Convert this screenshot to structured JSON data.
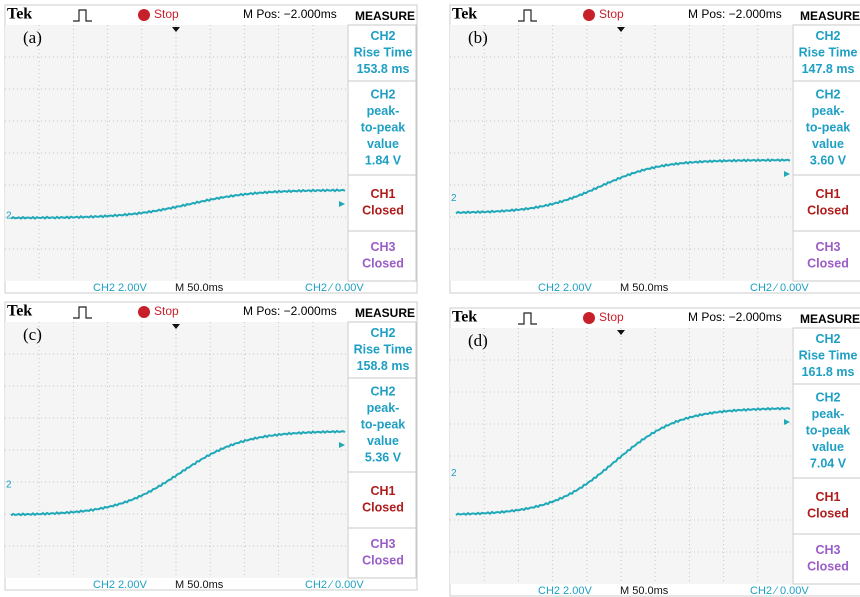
{
  "panels": [
    {
      "label": "(a)",
      "brand": "Tek",
      "status": "Stop",
      "mpos": "M Pos: −2.000ms",
      "measure": "MEASURE",
      "boxes": [
        {
          "color": "#1e9fc4",
          "lines": [
            "CH2",
            "Rise Time",
            "153.8 ms"
          ]
        },
        {
          "color": "#1e9fc4",
          "lines": [
            "CH2",
            "peak-",
            "to-peak",
            "value",
            "1.84 V"
          ]
        },
        {
          "color": "#b01c1c",
          "lines": [
            "CH1",
            "Closed"
          ]
        },
        {
          "color": "#9a5cc8",
          "lines": [
            "CH3",
            "Closed"
          ]
        }
      ],
      "marker": "2",
      "footer": [
        "CH2  2.00V",
        "M 50.0ms",
        "CH2 ∕ 0.00V"
      ]
    },
    {
      "label": "(b)",
      "brand": "Tek",
      "status": "Stop",
      "mpos": "M Pos: −2.000ms",
      "measure": "MEASURE",
      "boxes": [
        {
          "color": "#1e9fc4",
          "lines": [
            "CH2",
            "Rise Time",
            "147.8 ms"
          ]
        },
        {
          "color": "#1e9fc4",
          "lines": [
            "CH2",
            "peak-",
            "to-peak",
            "value",
            "3.60 V"
          ]
        },
        {
          "color": "#b01c1c",
          "lines": [
            "CH1",
            "Closed"
          ]
        },
        {
          "color": "#9a5cc8",
          "lines": [
            "CH3",
            "Closed"
          ]
        }
      ],
      "marker": "2",
      "footer": [
        "CH2  2.00V",
        "M 50.0ms",
        "CH2 ∕ 0.00V"
      ]
    },
    {
      "label": "(c)",
      "brand": "Tek",
      "status": "Stop",
      "mpos": "M Pos: −2.000ms",
      "measure": "MEASURE",
      "boxes": [
        {
          "color": "#1e9fc4",
          "lines": [
            "CH2",
            "Rise Time",
            "158.8 ms"
          ]
        },
        {
          "color": "#1e9fc4",
          "lines": [
            "CH2",
            "peak-",
            "to-peak",
            "value",
            "5.36 V"
          ]
        },
        {
          "color": "#b01c1c",
          "lines": [
            "CH1",
            "Closed"
          ]
        },
        {
          "color": "#9a5cc8",
          "lines": [
            "CH3",
            "Closed"
          ]
        }
      ],
      "marker": "2",
      "footer": [
        "CH2  2.00V",
        "M 50.0ms",
        "CH2 ∕ 0.00V"
      ]
    },
    {
      "label": "(d)",
      "brand": "Tek",
      "status": "Stop",
      "mpos": "M Pos: −2.000ms",
      "measure": "MEASURE",
      "boxes": [
        {
          "color": "#1e9fc4",
          "lines": [
            "CH2",
            "Rise Time",
            "161.8 ms"
          ]
        },
        {
          "color": "#1e9fc4",
          "lines": [
            "CH2",
            "peak-",
            "to-peak",
            "value",
            "7.04 V"
          ]
        },
        {
          "color": "#b01c1c",
          "lines": [
            "CH1",
            "Closed"
          ]
        },
        {
          "color": "#9a5cc8",
          "lines": [
            "CH3",
            "Closed"
          ]
        }
      ],
      "marker": "2",
      "footer": [
        "CH2  2.00V",
        "M 50.0ms",
        "CH2 ∕ 0.00V"
      ]
    }
  ]
}
